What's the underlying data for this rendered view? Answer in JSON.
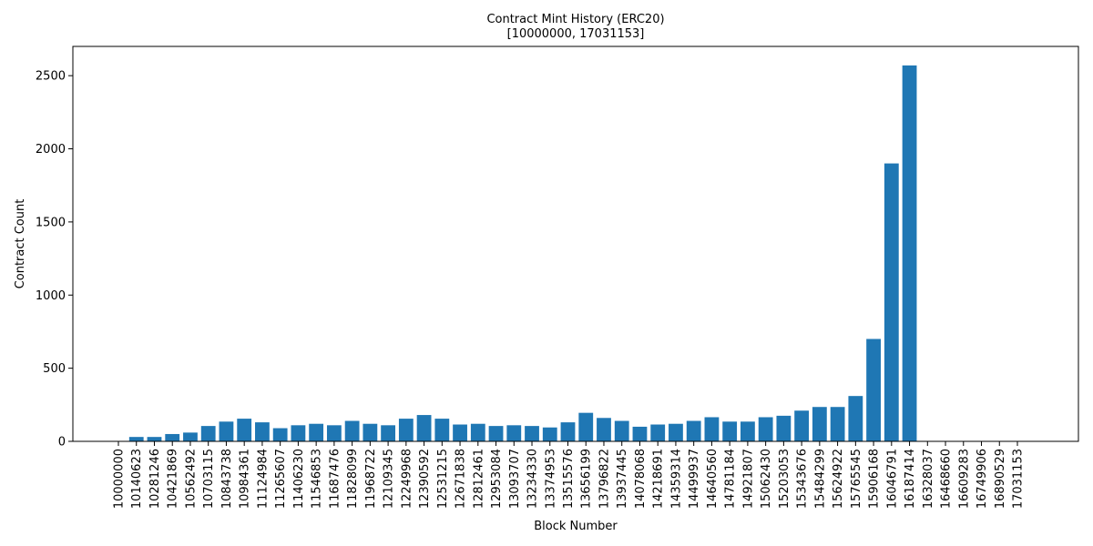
{
  "chart_data": {
    "type": "bar",
    "title": "Contract Mint History (ERC20)",
    "subtitle": "[10000000, 17031153]",
    "xlabel": "Block Number",
    "ylabel": "Contract Count",
    "ylim": [
      0,
      2700
    ],
    "yticks": [
      0,
      500,
      1000,
      1500,
      2000,
      2500
    ],
    "bar_color": "#1f77b4",
    "categories": [
      "10000000",
      "10140623",
      "10281246",
      "10421869",
      "10562492",
      "10703115",
      "10843738",
      "10984361",
      "11124984",
      "11265607",
      "11406230",
      "11546853",
      "11687476",
      "11828099",
      "11968722",
      "12109345",
      "12249968",
      "12390592",
      "12531215",
      "12671838",
      "12812461",
      "12953084",
      "13093707",
      "13234330",
      "13374953",
      "13515576",
      "13656199",
      "13796822",
      "13937445",
      "14078068",
      "14218691",
      "14359314",
      "14499937",
      "14640560",
      "14781184",
      "14921807",
      "15062430",
      "15203053",
      "15343676",
      "15484299",
      "15624922",
      "15765545",
      "15906168",
      "16046791",
      "16187414",
      "16328037",
      "16468660",
      "16609283",
      "16749906",
      "16890529",
      "17031153"
    ],
    "values": [
      0,
      30,
      30,
      50,
      60,
      105,
      135,
      155,
      130,
      90,
      110,
      120,
      110,
      140,
      120,
      110,
      155,
      180,
      155,
      115,
      120,
      105,
      110,
      105,
      95,
      130,
      195,
      160,
      140,
      100,
      115,
      120,
      140,
      165,
      135,
      135,
      165,
      175,
      210,
      235,
      235,
      310,
      700,
      1900,
      2570,
      0,
      0,
      0,
      0,
      0,
      0
    ]
  }
}
